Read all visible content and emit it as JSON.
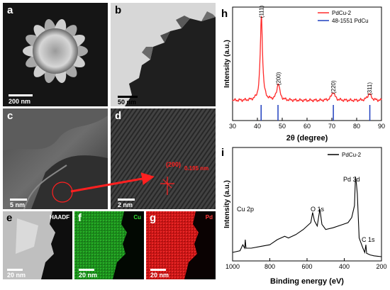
{
  "figure": {
    "panels": [
      {
        "key": "a",
        "label": "a",
        "scale": "200 nm"
      },
      {
        "key": "b",
        "label": "b",
        "scale": "50 nm"
      },
      {
        "key": "c",
        "label": "c",
        "scale": "5 nm"
      },
      {
        "key": "d",
        "label": "d",
        "scale": "2 nm",
        "annotation_plane": "(200)",
        "annotation_spacing": "0.195 nm"
      },
      {
        "key": "e",
        "label": "e",
        "scale": "20 nm",
        "channel": "HAADF"
      },
      {
        "key": "f",
        "label": "f",
        "scale": "20 nm",
        "channel": "Cu"
      },
      {
        "key": "g",
        "label": "g",
        "scale": "20 nm",
        "channel": "Pd"
      }
    ],
    "colors": {
      "cu_map": "#1c8a1c",
      "pd_map": "#c81414",
      "xrd_line": "#ff2a2a",
      "ref_line": "#1f3fbf",
      "annotation": "#ff2020"
    }
  },
  "chart_data": [
    {
      "type": "line",
      "panel": "h",
      "label": "h",
      "xlabel": "2θ (degree)",
      "ylabel": "Intensity (a.u.)",
      "xlim": [
        30,
        90
      ],
      "xticks": [
        30,
        40,
        50,
        60,
        70,
        80,
        90
      ],
      "legend": {
        "placement": "top-right",
        "entries": [
          "PdCu-2",
          "48-1551 PdCu"
        ]
      },
      "series": [
        {
          "name": "PdCu-2",
          "peaks": [
            {
              "x": 41.6,
              "height": 1.0,
              "width": 0.55,
              "label": "(111)"
            },
            {
              "x": 48.4,
              "height": 0.2,
              "width": 0.7,
              "label": "(200)"
            },
            {
              "x": 70.5,
              "height": 0.1,
              "width": 0.8,
              "label": "(220)"
            },
            {
              "x": 85.1,
              "height": 0.08,
              "width": 0.9,
              "label": "(311)"
            }
          ]
        },
        {
          "name": "48-1551 PdCu",
          "x": [
            41.5,
            48.3,
            70.6,
            85.3
          ]
        }
      ]
    },
    {
      "type": "line",
      "panel": "i",
      "label": "i",
      "xlabel": "Binding energy (eV)",
      "ylabel": "Intensity (a.u.)",
      "xlim": [
        1000,
        200
      ],
      "xticks": [
        1000,
        800,
        600,
        400,
        200
      ],
      "legend": {
        "placement": "top-right",
        "entries": [
          "PdCu-2"
        ]
      },
      "series": [
        {
          "name": "PdCu-2",
          "x": [
            1000,
            960,
            945,
            935,
            932,
            928,
            900,
            850,
            800,
            760,
            720,
            700,
            660,
            620,
            580,
            570,
            560,
            545,
            531,
            520,
            500,
            460,
            420,
            380,
            360,
            345,
            340,
            335,
            330,
            320,
            300,
            290,
            284,
            280,
            260,
            240,
            220,
            200
          ],
          "y": [
            0.05,
            0.07,
            0.14,
            0.1,
            0.2,
            0.1,
            0.1,
            0.12,
            0.14,
            0.2,
            0.24,
            0.22,
            0.26,
            0.32,
            0.4,
            0.52,
            0.42,
            0.36,
            0.56,
            0.38,
            0.32,
            0.34,
            0.37,
            0.4,
            0.46,
            0.6,
            0.94,
            0.86,
            0.74,
            0.22,
            0.1,
            0.05,
            0.14,
            0.04,
            0.02,
            0.01,
            0.005,
            0.0
          ]
        }
      ],
      "annotations": [
        "Cu 2p",
        "O 1s",
        "Pd 3d",
        "C 1s"
      ]
    }
  ]
}
